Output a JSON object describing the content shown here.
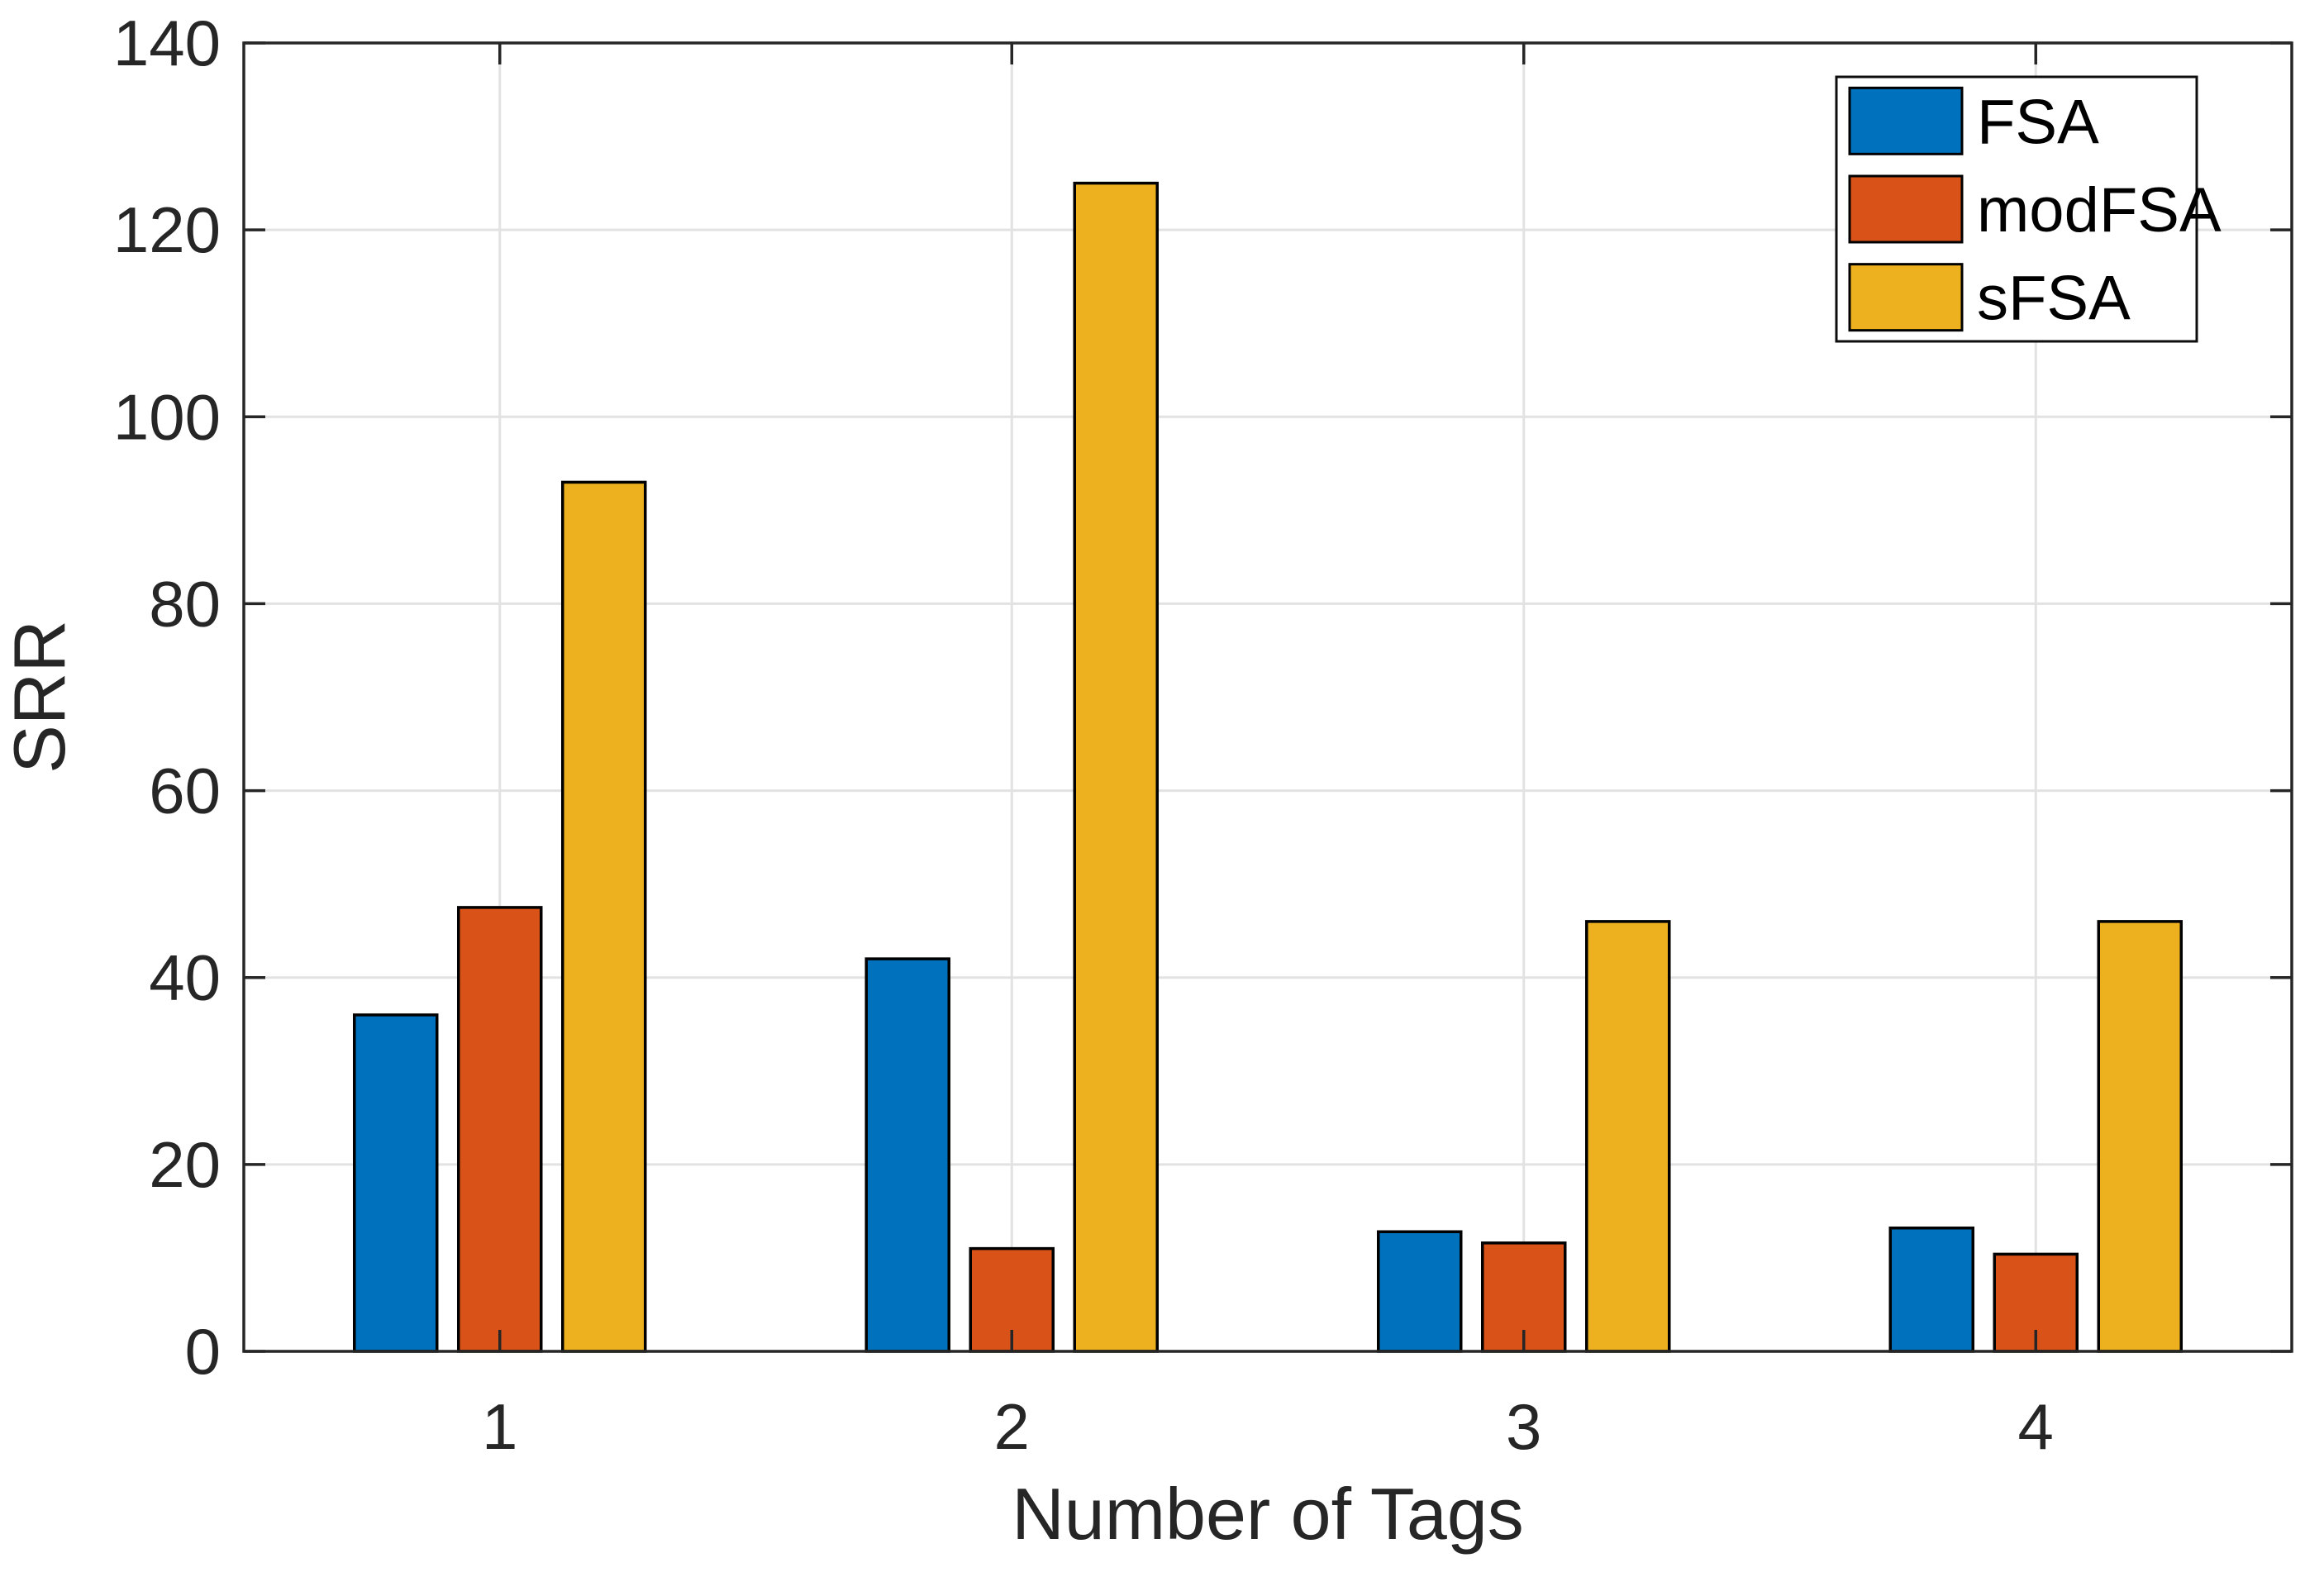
{
  "chart_data": {
    "type": "bar",
    "title": "",
    "xlabel": "Number of Tags",
    "ylabel": "SRR",
    "categories": [
      "1",
      "2",
      "3",
      "4"
    ],
    "series": [
      {
        "name": "FSA",
        "color": "#0072BD",
        "values": [
          36.0,
          42.0,
          12.8,
          13.2
        ]
      },
      {
        "name": "modFSA",
        "color": "#D95319",
        "values": [
          47.5,
          11.0,
          11.6,
          10.4
        ]
      },
      {
        "name": "sFSA",
        "color": "#EDB120",
        "values": [
          93.0,
          125.0,
          46.0,
          46.0
        ]
      }
    ],
    "ylim": [
      0,
      140
    ],
    "yticks": [
      0,
      20,
      40,
      60,
      80,
      100,
      120,
      140
    ],
    "grid": true,
    "legend_position": "northeast"
  },
  "style": {
    "background_color": "#FFFFFF",
    "axis_color": "#262626",
    "grid_color": "#E2E2E2",
    "bar_edge_color": "#000000",
    "legend_border_color": "#0D0D0D"
  }
}
